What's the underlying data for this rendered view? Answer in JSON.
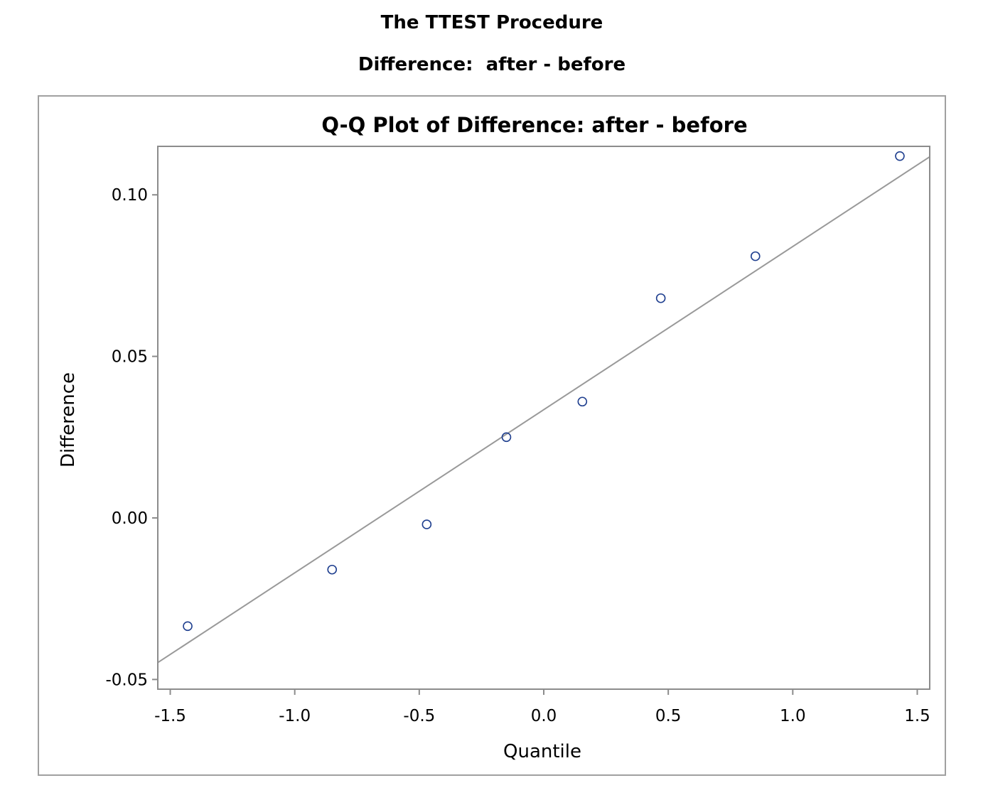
{
  "header": {
    "procedure_title": "The TTEST Procedure",
    "subtitle": "Difference:  after - before"
  },
  "chart_data": {
    "type": "scatter",
    "title": "Q-Q Plot of Difference: after - before",
    "xlabel": "Quantile",
    "ylabel": "Difference",
    "xlim": [
      -1.55,
      1.55
    ],
    "ylim": [
      -0.053,
      0.115
    ],
    "xticks": [
      -1.5,
      -1.0,
      -0.5,
      0.0,
      0.5,
      1.0,
      1.5
    ],
    "xtick_labels": [
      "-1.5",
      "-1.0",
      "-0.5",
      "0.0",
      "0.5",
      "1.0",
      "1.5"
    ],
    "yticks": [
      -0.05,
      0.0,
      0.05,
      0.1
    ],
    "ytick_labels": [
      "-0.05",
      "0.00",
      "0.05",
      "0.10"
    ],
    "grid": false,
    "points": [
      {
        "x": -1.43,
        "y": -0.0335
      },
      {
        "x": -0.85,
        "y": -0.016
      },
      {
        "x": -0.47,
        "y": -0.002
      },
      {
        "x": -0.15,
        "y": 0.025
      },
      {
        "x": 0.155,
        "y": 0.036
      },
      {
        "x": 0.47,
        "y": 0.068
      },
      {
        "x": 0.85,
        "y": 0.081
      },
      {
        "x": 1.43,
        "y": 0.112
      }
    ],
    "reference_line": {
      "intercept": 0.0335,
      "slope": 0.0505
    },
    "colors": {
      "marker": "#1f3f8f",
      "reference_line": "#999999",
      "axis": "#8c8c8c",
      "frame": "#a0a0a0"
    }
  }
}
